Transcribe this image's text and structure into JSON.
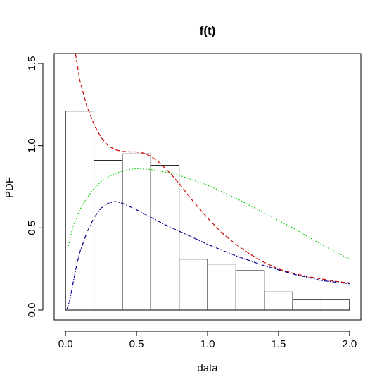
{
  "chart_data": {
    "type": "histogram",
    "title": "f(t)",
    "xlabel": "data",
    "ylabel": "PDF",
    "xlim": [
      -0.08,
      2.08
    ],
    "ylim": [
      -0.06,
      1.56
    ],
    "xticks": [
      "0.0",
      "0.5",
      "1.0",
      "1.5",
      "2.0"
    ],
    "xtick_values": [
      0.0,
      0.5,
      1.0,
      1.5,
      2.0
    ],
    "yticks": [
      "0.0",
      "0.5",
      "1.0",
      "1.5"
    ],
    "ytick_values": [
      0.0,
      0.5,
      1.0,
      1.5
    ],
    "grid": false,
    "histogram": {
      "bin_edges": [
        0.0,
        0.2,
        0.4,
        0.6,
        0.8,
        1.0,
        1.2,
        1.4,
        1.6,
        1.8,
        2.0
      ],
      "densities": [
        1.21,
        0.91,
        0.95,
        0.88,
        0.31,
        0.28,
        0.24,
        0.11,
        0.065,
        0.065
      ]
    },
    "curves": [
      {
        "color": "#cc0000",
        "linestyle": "dashed",
        "x": [
          0.07,
          0.1,
          0.15,
          0.2,
          0.25,
          0.3,
          0.35,
          0.4,
          0.45,
          0.5,
          0.55,
          0.6,
          0.65,
          0.7,
          0.75,
          0.8,
          0.9,
          1.0,
          1.1,
          1.2,
          1.3,
          1.4,
          1.5,
          1.6,
          1.7,
          1.8,
          1.9,
          2.0
        ],
        "y": [
          1.56,
          1.4,
          1.24,
          1.13,
          1.05,
          1.0,
          0.975,
          0.965,
          0.962,
          0.962,
          0.955,
          0.935,
          0.905,
          0.865,
          0.82,
          0.77,
          0.66,
          0.56,
          0.47,
          0.4,
          0.34,
          0.29,
          0.25,
          0.225,
          0.205,
          0.19,
          0.175,
          0.165
        ]
      },
      {
        "color": "#00cc00",
        "linestyle": "dotted",
        "x": [
          0.02,
          0.05,
          0.1,
          0.15,
          0.2,
          0.25,
          0.3,
          0.35,
          0.4,
          0.45,
          0.5,
          0.6,
          0.7,
          0.8,
          0.9,
          1.0,
          1.2,
          1.4,
          1.6,
          1.8,
          2.0
        ],
        "y": [
          0.39,
          0.5,
          0.61,
          0.68,
          0.74,
          0.78,
          0.81,
          0.83,
          0.845,
          0.855,
          0.86,
          0.855,
          0.84,
          0.82,
          0.79,
          0.76,
          0.68,
          0.59,
          0.5,
          0.4,
          0.31
        ]
      },
      {
        "color": "#00008b",
        "linestyle": "dotdash",
        "x": [
          0.01,
          0.03,
          0.05,
          0.08,
          0.1,
          0.15,
          0.2,
          0.25,
          0.3,
          0.35,
          0.4,
          0.45,
          0.5,
          0.6,
          0.7,
          0.8,
          0.9,
          1.0,
          1.2,
          1.4,
          1.6,
          1.8,
          2.0
        ],
        "y": [
          0.005,
          0.06,
          0.15,
          0.28,
          0.35,
          0.47,
          0.56,
          0.62,
          0.65,
          0.66,
          0.65,
          0.63,
          0.61,
          0.565,
          0.52,
          0.48,
          0.44,
          0.4,
          0.33,
          0.27,
          0.22,
          0.18,
          0.16
        ]
      }
    ]
  }
}
